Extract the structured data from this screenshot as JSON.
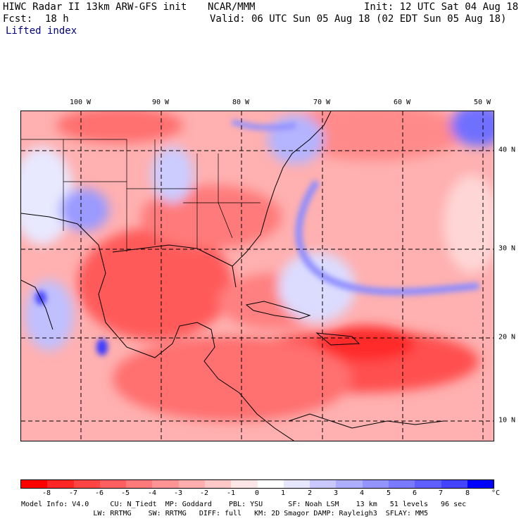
{
  "header": {
    "title": "HIWC Radar II 13km ARW-GFS init",
    "org": "NCAR/MMM",
    "init": "Init: 12 UTC Sat 04 Aug 18",
    "fcst_label": "Fcst:",
    "fcst_value": "18 h",
    "valid": "Valid: 06 UTC Sun 05 Aug 18 (02 EDT Sun 05 Aug 18)",
    "field": "Lifted index"
  },
  "map": {
    "lon_labels": [
      "100 W",
      "90 W",
      "80 W",
      "70 W",
      "60 W",
      "50 W"
    ],
    "lat_labels": [
      "40 N",
      "30 N",
      "20 N",
      "10 N"
    ],
    "grid_style": "dashed"
  },
  "colorbar": {
    "ticks": [
      "-8",
      "-7",
      "-6",
      "-5",
      "-4",
      "-3",
      "-2",
      "-1",
      "0",
      "1",
      "2",
      "3",
      "4",
      "5",
      "6",
      "7",
      "8"
    ],
    "unit": "°C",
    "colors": [
      "#ff0000",
      "#ff2626",
      "#ff4444",
      "#ff5f5f",
      "#ff7a7a",
      "#ff9494",
      "#ffaeae",
      "#ffc8c8",
      "#ffe6e6",
      "#ffffff",
      "#e6e6ff",
      "#c8c8ff",
      "#aeaeff",
      "#9494ff",
      "#7a7aff",
      "#5f5fff",
      "#4444ff",
      "#0000ff"
    ]
  },
  "footer": {
    "line1": "Model Info: V4.0     CU: N_Tiedt  MP: Goddard    PBL: YSU      SF: Noah LSM    13 km   51 levels   96 sec",
    "line2": "                 LW: RRTMG    SW: RRTMG   DIFF: full   KM: 2D Smagor DAMP: Rayleigh3  SFLAY: MM5"
  },
  "colors": {
    "negative": "#ff4c4c",
    "positive": "#6b6bff",
    "grid": "#000000"
  }
}
